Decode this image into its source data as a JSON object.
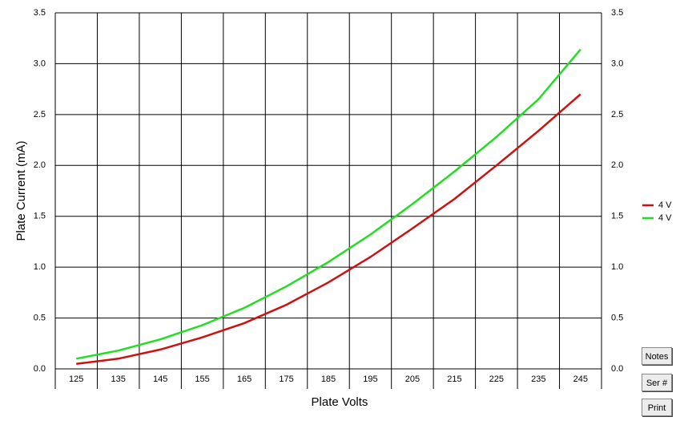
{
  "chart_data": {
    "type": "line",
    "x_label": "Plate Volts",
    "y_label": "Plate Current (mA)",
    "categories": [
      "125",
      "135",
      "145",
      "155",
      "165",
      "175",
      "185",
      "195",
      "205",
      "215",
      "225",
      "235",
      "245"
    ],
    "series": [
      {
        "name": "4 V",
        "color": "#cc1111",
        "values": [
          0.05,
          0.1,
          0.19,
          0.31,
          0.45,
          0.63,
          0.85,
          1.1,
          1.38,
          1.67,
          2.0,
          2.34,
          2.7
        ]
      },
      {
        "name": "4 V",
        "color": "#22dd22",
        "values": [
          0.1,
          0.18,
          0.29,
          0.43,
          0.6,
          0.81,
          1.05,
          1.32,
          1.62,
          1.94,
          2.28,
          2.65,
          3.14
        ]
      }
    ],
    "ylim": [
      0,
      3.5
    ],
    "yticks": [
      {
        "value": 0,
        "label": "0.0"
      },
      {
        "value": 0.5,
        "label": "0.5"
      },
      {
        "value": 1,
        "label": "1.0"
      },
      {
        "value": 1.5,
        "label": "1.5"
      },
      {
        "value": 2,
        "label": "2.0"
      },
      {
        "value": 2.5,
        "label": "2.5"
      },
      {
        "value": 3,
        "label": "3.0"
      },
      {
        "value": 3.5,
        "label": "3.5"
      }
    ],
    "grid": true
  },
  "buttons": [
    "Notes",
    "Ser #",
    "Print"
  ]
}
